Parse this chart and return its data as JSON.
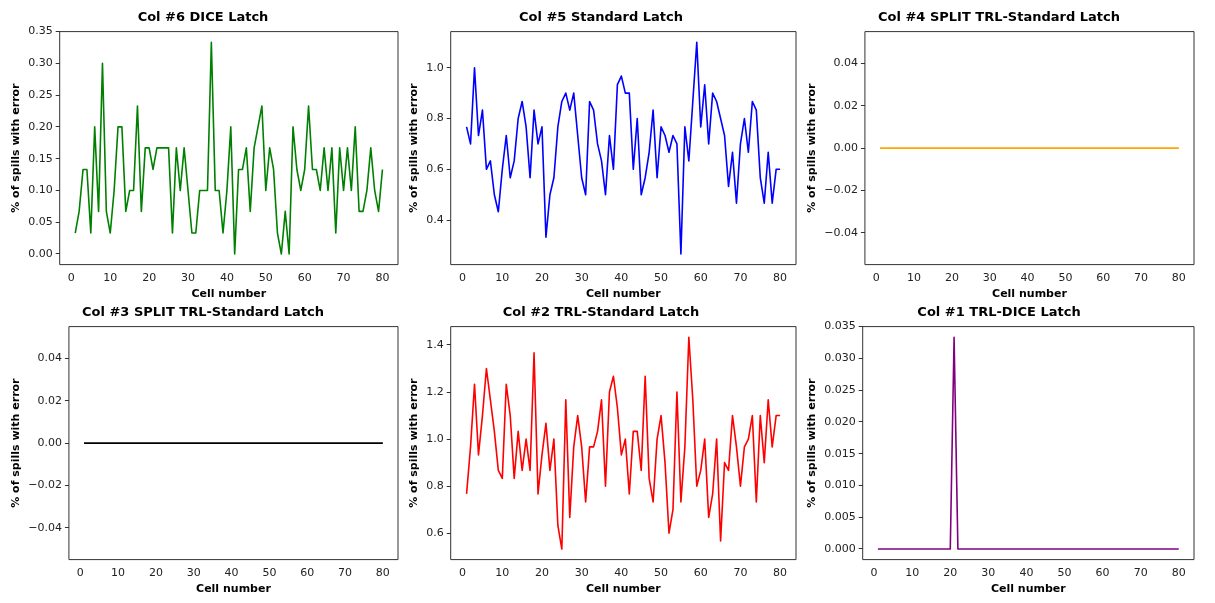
{
  "chart_data": [
    {
      "type": "line",
      "title": "Col #6 DICE Latch",
      "xlabel": "Cell number",
      "ylabel": "% of spills with error",
      "x": [
        1,
        2,
        3,
        4,
        5,
        6,
        7,
        8,
        9,
        10,
        11,
        12,
        13,
        14,
        15,
        16,
        17,
        18,
        19,
        20,
        21,
        22,
        23,
        24,
        25,
        26,
        27,
        28,
        29,
        30,
        31,
        32,
        33,
        34,
        35,
        36,
        37,
        38,
        39,
        40,
        41,
        42,
        43,
        44,
        45,
        46,
        47,
        48,
        49,
        50,
        51,
        52,
        53,
        54,
        55,
        56,
        57,
        58,
        59,
        60,
        61,
        62,
        63,
        64,
        65,
        66,
        67,
        68,
        69,
        70,
        71,
        72,
        73,
        74,
        75,
        76,
        77,
        78,
        79,
        80
      ],
      "series": [
        {
          "color": "#008000",
          "values": [
            0.033,
            0.067,
            0.133,
            0.133,
            0.033,
            0.2,
            0.067,
            0.3,
            0.067,
            0.033,
            0.1,
            0.2,
            0.2,
            0.067,
            0.1,
            0.1,
            0.233,
            0.067,
            0.167,
            0.167,
            0.133,
            0.167,
            0.167,
            0.167,
            0.167,
            0.033,
            0.167,
            0.1,
            0.167,
            0.1,
            0.033,
            0.033,
            0.1,
            0.1,
            0.1,
            0.333,
            0.1,
            0.1,
            0.033,
            0.1,
            0.2,
            0,
            0.133,
            0.133,
            0.167,
            0.067,
            0.167,
            0.2,
            0.233,
            0.1,
            0.167,
            0.133,
            0.033,
            0,
            0.067,
            0,
            0.2,
            0.133,
            0.1,
            0.133,
            0.233,
            0.133,
            0.133,
            0.1,
            0.167,
            0.1,
            0.167,
            0.033,
            0.167,
            0.1,
            0.167,
            0.1,
            0.2,
            0.067,
            0.067,
            0.1,
            0.167,
            0.1,
            0.067,
            0.133
          ]
        }
      ],
      "xlim": [
        -3,
        84
      ],
      "xticks": [
        0,
        10,
        20,
        30,
        40,
        50,
        60,
        70,
        80
      ],
      "ylim": [
        -0.0167,
        0.35
      ],
      "yticks": [
        {
          "value": 0,
          "label": "0.00"
        },
        0.05,
        {
          "value": 0.1,
          "label": "0.10"
        },
        0.15,
        {
          "value": 0.2,
          "label": "0.20"
        },
        0.25,
        {
          "value": 0.3,
          "label": "0.30"
        },
        0.35
      ]
    },
    {
      "type": "line",
      "title": "Col #5 Standard Latch",
      "xlabel": "Cell number",
      "ylabel": "% of spills with error",
      "x": [
        1,
        2,
        3,
        4,
        5,
        6,
        7,
        8,
        9,
        10,
        11,
        12,
        13,
        14,
        15,
        16,
        17,
        18,
        19,
        20,
        21,
        22,
        23,
        24,
        25,
        26,
        27,
        28,
        29,
        30,
        31,
        32,
        33,
        34,
        35,
        36,
        37,
        38,
        39,
        40,
        41,
        42,
        43,
        44,
        45,
        46,
        47,
        48,
        49,
        50,
        51,
        52,
        53,
        54,
        55,
        56,
        57,
        58,
        59,
        60,
        61,
        62,
        63,
        64,
        65,
        66,
        67,
        68,
        69,
        70,
        71,
        72,
        73,
        74,
        75,
        76,
        77,
        78,
        79,
        80
      ],
      "series": [
        {
          "color": "#0000ff",
          "values": [
            0.767,
            0.7,
            1.0,
            0.733,
            0.833,
            0.6,
            0.633,
            0.5,
            0.433,
            0.6,
            0.733,
            0.567,
            0.633,
            0.8,
            0.867,
            0.767,
            0.567,
            0.833,
            0.7,
            0.767,
            0.333,
            0.5,
            0.567,
            0.767,
            0.867,
            0.9,
            0.833,
            0.9,
            0.733,
            0.567,
            0.5,
            0.867,
            0.833,
            0.7,
            0.633,
            0.5,
            0.733,
            0.6,
            0.933,
            0.967,
            0.9,
            0.9,
            0.6,
            0.8,
            0.5,
            0.567,
            0.667,
            0.833,
            0.567,
            0.767,
            0.733,
            0.667,
            0.733,
            0.7,
            0.267,
            0.767,
            0.633,
            0.867,
            1.1,
            0.767,
            0.933,
            0.7,
            0.9,
            0.867,
            0.8,
            0.733,
            0.533,
            0.667,
            0.467,
            0.7,
            0.8,
            0.667,
            0.867,
            0.833,
            0.567,
            0.467,
            0.667,
            0.467,
            0.6,
            0.6
          ]
        }
      ],
      "xlim": [
        -3,
        84
      ],
      "xticks": [
        0,
        10,
        20,
        30,
        40,
        50,
        60,
        70,
        80
      ],
      "ylim": [
        0.225,
        1.142
      ],
      "yticks": [
        0.4,
        0.6,
        0.8,
        {
          "value": 1,
          "label": "1.0"
        }
      ]
    },
    {
      "type": "line",
      "title": "Col #4 SPLIT TRL-Standard Latch",
      "xlabel": "Cell number",
      "ylabel": "% of spills with error",
      "x": [
        1,
        2,
        3,
        4,
        5,
        6,
        7,
        8,
        9,
        10,
        11,
        12,
        13,
        14,
        15,
        16,
        17,
        18,
        19,
        20,
        21,
        22,
        23,
        24,
        25,
        26,
        27,
        28,
        29,
        30,
        31,
        32,
        33,
        34,
        35,
        36,
        37,
        38,
        39,
        40,
        41,
        42,
        43,
        44,
        45,
        46,
        47,
        48,
        49,
        50,
        51,
        52,
        53,
        54,
        55,
        56,
        57,
        58,
        59,
        60,
        61,
        62,
        63,
        64,
        65,
        66,
        67,
        68,
        69,
        70,
        71,
        72,
        73,
        74,
        75,
        76,
        77,
        78,
        79,
        80
      ],
      "series": [
        {
          "color": "#ffa500",
          "values": [
            0,
            0,
            0,
            0,
            0,
            0,
            0,
            0,
            0,
            0,
            0,
            0,
            0,
            0,
            0,
            0,
            0,
            0,
            0,
            0,
            0,
            0,
            0,
            0,
            0,
            0,
            0,
            0,
            0,
            0,
            0,
            0,
            0,
            0,
            0,
            0,
            0,
            0,
            0,
            0,
            0,
            0,
            0,
            0,
            0,
            0,
            0,
            0,
            0,
            0,
            0,
            0,
            0,
            0,
            0,
            0,
            0,
            0,
            0,
            0,
            0,
            0,
            0,
            0,
            0,
            0,
            0,
            0,
            0,
            0,
            0,
            0,
            0,
            0,
            0,
            0,
            0,
            0,
            0,
            0
          ]
        }
      ],
      "xlim": [
        -3,
        84
      ],
      "xticks": [
        0,
        10,
        20,
        30,
        40,
        50,
        60,
        70,
        80
      ],
      "ylim": [
        -0.055,
        0.055
      ],
      "yticks": [
        {
          "value": -0.04,
          "label": "−0.04"
        },
        {
          "value": -0.02,
          "label": "−0.02"
        },
        {
          "value": 0,
          "label": "0.00"
        },
        0.02,
        0.04
      ]
    },
    {
      "type": "line",
      "title": "Col #3 SPLIT TRL-Standard Latch",
      "xlabel": "Cell number",
      "ylabel": "% of spills with error",
      "x": [
        1,
        2,
        3,
        4,
        5,
        6,
        7,
        8,
        9,
        10,
        11,
        12,
        13,
        14,
        15,
        16,
        17,
        18,
        19,
        20,
        21,
        22,
        23,
        24,
        25,
        26,
        27,
        28,
        29,
        30,
        31,
        32,
        33,
        34,
        35,
        36,
        37,
        38,
        39,
        40,
        41,
        42,
        43,
        44,
        45,
        46,
        47,
        48,
        49,
        50,
        51,
        52,
        53,
        54,
        55,
        56,
        57,
        58,
        59,
        60,
        61,
        62,
        63,
        64,
        65,
        66,
        67,
        68,
        69,
        70,
        71,
        72,
        73,
        74,
        75,
        76,
        77,
        78,
        79,
        80
      ],
      "series": [
        {
          "color": "#000000",
          "values": [
            0,
            0,
            0,
            0,
            0,
            0,
            0,
            0,
            0,
            0,
            0,
            0,
            0,
            0,
            0,
            0,
            0,
            0,
            0,
            0,
            0,
            0,
            0,
            0,
            0,
            0,
            0,
            0,
            0,
            0,
            0,
            0,
            0,
            0,
            0,
            0,
            0,
            0,
            0,
            0,
            0,
            0,
            0,
            0,
            0,
            0,
            0,
            0,
            0,
            0,
            0,
            0,
            0,
            0,
            0,
            0,
            0,
            0,
            0,
            0,
            0,
            0,
            0,
            0,
            0,
            0,
            0,
            0,
            0,
            0,
            0,
            0,
            0,
            0,
            0,
            0,
            0,
            0,
            0,
            0
          ]
        }
      ],
      "xlim": [
        -3,
        84
      ],
      "xticks": [
        0,
        10,
        20,
        30,
        40,
        50,
        60,
        70,
        80
      ],
      "ylim": [
        -0.055,
        0.055
      ],
      "yticks": [
        {
          "value": -0.04,
          "label": "−0.04"
        },
        {
          "value": -0.02,
          "label": "−0.02"
        },
        {
          "value": 0,
          "label": "0.00"
        },
        0.02,
        0.04
      ]
    },
    {
      "type": "line",
      "title": "Col #2 TRL-Standard Latch",
      "xlabel": "Cell number",
      "ylabel": "% of spills with error",
      "x": [
        1,
        2,
        3,
        4,
        5,
        6,
        7,
        8,
        9,
        10,
        11,
        12,
        13,
        14,
        15,
        16,
        17,
        18,
        19,
        20,
        21,
        22,
        23,
        24,
        25,
        26,
        27,
        28,
        29,
        30,
        31,
        32,
        33,
        34,
        35,
        36,
        37,
        38,
        39,
        40,
        41,
        42,
        43,
        44,
        45,
        46,
        47,
        48,
        49,
        50,
        51,
        52,
        53,
        54,
        55,
        56,
        57,
        58,
        59,
        60,
        61,
        62,
        63,
        64,
        65,
        66,
        67,
        68,
        69,
        70,
        71,
        72,
        73,
        74,
        75,
        76,
        77,
        78,
        79,
        80
      ],
      "series": [
        {
          "color": "#ff0000",
          "values": [
            0.767,
            0.967,
            1.233,
            0.933,
            1.1,
            1.3,
            1.167,
            1.033,
            0.867,
            0.833,
            1.233,
            1.1,
            0.833,
            1.033,
            0.867,
            1.0,
            0.867,
            1.367,
            0.767,
            0.933,
            1.067,
            0.867,
            1.0,
            0.633,
            0.533,
            1.167,
            0.667,
            0.967,
            1.1,
            0.967,
            0.733,
            0.967,
            0.967,
            1.033,
            1.167,
            0.8,
            1.2,
            1.267,
            1.133,
            0.933,
            1.0,
            0.767,
            1.033,
            1.033,
            0.867,
            1.267,
            0.833,
            0.733,
            1.0,
            1.1,
            0.9,
            0.6,
            0.7,
            1.2,
            0.733,
            0.967,
            1.433,
            1.167,
            0.8,
            0.867,
            1.0,
            0.667,
            0.767,
            1.0,
            0.567,
            0.9,
            0.867,
            1.1,
            0.967,
            0.8,
            0.967,
            1.0,
            1.1,
            0.733,
            1.1,
            0.9,
            1.167,
            0.967,
            1.1,
            1.1
          ]
        }
      ],
      "xlim": [
        -3,
        84
      ],
      "xticks": [
        0,
        10,
        20,
        30,
        40,
        50,
        60,
        70,
        80
      ],
      "ylim": [
        0.488,
        1.478
      ],
      "yticks": [
        0.6,
        0.8,
        {
          "value": 1,
          "label": "1.0"
        },
        1.2,
        1.4
      ]
    },
    {
      "type": "line",
      "title": "Col #1 TRL-DICE Latch",
      "xlabel": "Cell number",
      "ylabel": "% of spills with error",
      "x": [
        1,
        2,
        3,
        4,
        5,
        6,
        7,
        8,
        9,
        10,
        11,
        12,
        13,
        14,
        15,
        16,
        17,
        18,
        19,
        20,
        21,
        22,
        23,
        24,
        25,
        26,
        27,
        28,
        29,
        30,
        31,
        32,
        33,
        34,
        35,
        36,
        37,
        38,
        39,
        40,
        41,
        42,
        43,
        44,
        45,
        46,
        47,
        48,
        49,
        50,
        51,
        52,
        53,
        54,
        55,
        56,
        57,
        58,
        59,
        60,
        61,
        62,
        63,
        64,
        65,
        66,
        67,
        68,
        69,
        70,
        71,
        72,
        73,
        74,
        75,
        76,
        77,
        78,
        79,
        80
      ],
      "series": [
        {
          "color": "#800080",
          "values": [
            0,
            0,
            0,
            0,
            0,
            0,
            0,
            0,
            0,
            0,
            0,
            0,
            0,
            0,
            0,
            0,
            0,
            0,
            0,
            0,
            0.0333,
            0,
            0,
            0,
            0,
            0,
            0,
            0,
            0,
            0,
            0,
            0,
            0,
            0,
            0,
            0,
            0,
            0,
            0,
            0,
            0,
            0,
            0,
            0,
            0,
            0,
            0,
            0,
            0,
            0,
            0,
            0,
            0,
            0,
            0,
            0,
            0,
            0,
            0,
            0,
            0,
            0,
            0,
            0,
            0,
            0,
            0,
            0,
            0,
            0,
            0,
            0,
            0,
            0,
            0,
            0,
            0,
            0,
            0,
            0
          ]
        }
      ],
      "xlim": [
        -3,
        84
      ],
      "xticks": [
        0,
        10,
        20,
        30,
        40,
        50,
        60,
        70,
        80
      ],
      "ylim": [
        -0.00167,
        0.035
      ],
      "yticks": [
        {
          "value": 0,
          "label": "0.000"
        },
        0.005,
        {
          "value": 0.01,
          "label": "0.010"
        },
        0.015,
        {
          "value": 0.02,
          "label": "0.020"
        },
        0.025,
        {
          "value": 0.03,
          "label": "0.030"
        },
        0.035
      ]
    }
  ]
}
